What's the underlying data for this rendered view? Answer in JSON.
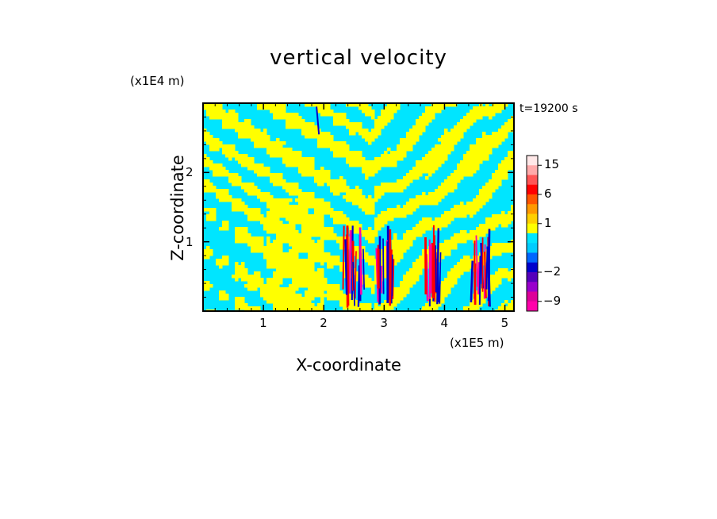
{
  "chart_data": {
    "type": "heatmap",
    "title": "vertical velocity",
    "xlabel": "X-coordinate",
    "ylabel": "Z-coordinate",
    "x_unit": "(x1E5 m)",
    "z_unit": "(x1E4 m)",
    "time_label": "t=19200 s",
    "xlim": [
      0,
      5.15
    ],
    "zlim": [
      0,
      3.0
    ],
    "x_ticks": [
      "1",
      "2",
      "3",
      "4",
      "5"
    ],
    "z_ticks": [
      "1",
      "2"
    ],
    "colorbar": {
      "levels": [
        -12,
        -9,
        -6,
        -4,
        -2,
        -1,
        -0.5,
        0,
        0.5,
        1,
        2,
        4,
        6,
        9,
        12,
        15,
        20
      ],
      "tick_labels": [
        "-9",
        "-2",
        "1",
        "6",
        "15"
      ],
      "colors": [
        "#ff00aa",
        "#dd0099",
        "#9900cc",
        "#5500bb",
        "#0000cc",
        "#0066ff",
        "#00ccff",
        "#00e5ff",
        "#ffff00",
        "#ffd000",
        "#ff9900",
        "#ff5500",
        "#ff0000",
        "#ff5555",
        "#ffaaaa",
        "#ffe8e8"
      ]
    },
    "dominant_values": [
      "cyan: slightly negative (-0.5 to 0)",
      "yellow: slightly positive (0 to 0.5)"
    ],
    "strong_updraft_columns_x": [
      2.5,
      3.0,
      3.8,
      4.6
    ],
    "grid": false,
    "legend_position": "right"
  },
  "colors": {
    "cyan": "#00e5ff",
    "yellow": "#ffff00",
    "red": "#ff0000",
    "blue": "#0000cc",
    "magenta": "#ff00aa"
  }
}
